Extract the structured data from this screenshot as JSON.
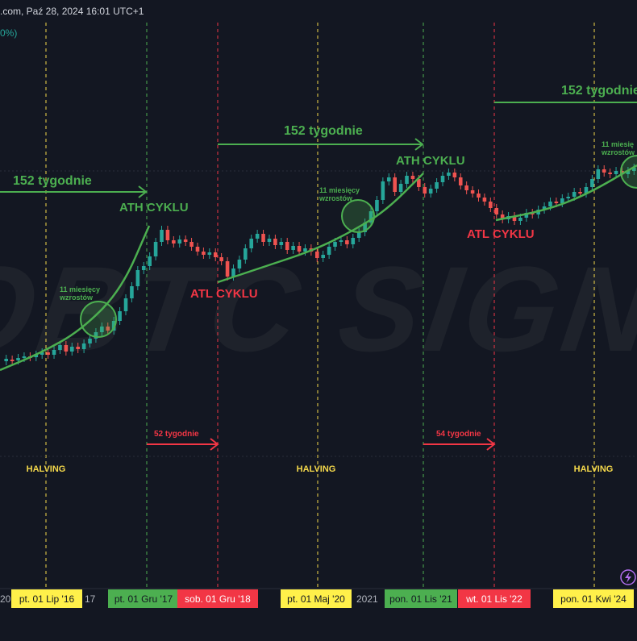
{
  "header": {
    "title_fragment": ".com, Paź 28, 2024 16:01 UTC+1",
    "pct_fragment": "0%)"
  },
  "colors": {
    "background": "#131722",
    "candle_up": "#26a69a",
    "candle_down": "#ef5350",
    "green_annotation": "#4caf50",
    "red_annotation": "#f23645",
    "halving_yellow": "#f5d94b",
    "badge_yellow": "#fff04a",
    "badge_green": "#4caf50",
    "badge_red": "#f23645"
  },
  "watermark": "OBTC SIGNA",
  "annotations": {
    "weeks_152_left": "152 tygodnie",
    "weeks_152_mid": "152 tygodnie",
    "weeks_152_right": "152 tygodnie",
    "ath_1": "ATH CYKLU",
    "ath_2": "ATH CYKLU",
    "atl_1": "ATL CYKLU",
    "atl_2": "ATL CYKLU",
    "months_growth_1": [
      "11 miesięcy",
      "wzrostów"
    ],
    "months_growth_2": [
      "11 miesięcy",
      "wzrostów"
    ],
    "months_growth_3": [
      "11 miesię",
      "wzrostów"
    ],
    "weeks_52": "52 tygodnie",
    "weeks_54": "54 tygodnie",
    "halving_label": "HALVING"
  },
  "timeline": {
    "axis_fragments": [
      "20",
      "17",
      "2021"
    ],
    "badges": [
      {
        "label": "pt. 01 Lip '16",
        "kind": "yellow"
      },
      {
        "label": "pt. 01 Gru '17",
        "kind": "green"
      },
      {
        "label": "sob. 01 Gru '18",
        "kind": "red"
      },
      {
        "label": "pt. 01 Maj '20",
        "kind": "yellow"
      },
      {
        "label": "pon. 01 Lis '21",
        "kind": "green"
      },
      {
        "label": "wt. 01 Lis '22",
        "kind": "red"
      },
      {
        "label": "pon. 01 Kwi '24",
        "kind": "yellow"
      }
    ]
  },
  "chart_data": {
    "type": "candlestick",
    "candles": [
      {
        "o": 448,
        "c": 445
      },
      {
        "o": 446,
        "c": 447
      },
      {
        "o": 447,
        "c": 444
      },
      {
        "o": 444,
        "c": 442
      },
      {
        "o": 442,
        "c": 443
      },
      {
        "o": 443,
        "c": 440
      },
      {
        "o": 440,
        "c": 437
      },
      {
        "o": 437,
        "c": 440
      },
      {
        "o": 440,
        "c": 434
      },
      {
        "o": 434,
        "c": 428
      },
      {
        "o": 428,
        "c": 436
      },
      {
        "o": 436,
        "c": 430
      },
      {
        "o": 430,
        "c": 433
      },
      {
        "o": 433,
        "c": 426
      },
      {
        "o": 426,
        "c": 420
      },
      {
        "o": 420,
        "c": 412
      },
      {
        "o": 412,
        "c": 405
      },
      {
        "o": 405,
        "c": 410
      },
      {
        "o": 410,
        "c": 398
      },
      {
        "o": 398,
        "c": 386
      },
      {
        "o": 386,
        "c": 370
      },
      {
        "o": 370,
        "c": 355
      },
      {
        "o": 355,
        "c": 335
      },
      {
        "o": 335,
        "c": 330
      },
      {
        "o": 330,
        "c": 318
      },
      {
        "o": 318,
        "c": 300
      },
      {
        "o": 300,
        "c": 285
      },
      {
        "o": 285,
        "c": 298
      },
      {
        "o": 298,
        "c": 302
      },
      {
        "o": 302,
        "c": 297
      },
      {
        "o": 297,
        "c": 300
      },
      {
        "o": 300,
        "c": 306
      },
      {
        "o": 306,
        "c": 312
      },
      {
        "o": 312,
        "c": 316
      },
      {
        "o": 316,
        "c": 313
      },
      {
        "o": 313,
        "c": 319
      },
      {
        "o": 319,
        "c": 324
      },
      {
        "o": 324,
        "c": 343
      },
      {
        "o": 343,
        "c": 333
      },
      {
        "o": 333,
        "c": 322
      },
      {
        "o": 322,
        "c": 308
      },
      {
        "o": 308,
        "c": 296
      },
      {
        "o": 296,
        "c": 290
      },
      {
        "o": 290,
        "c": 300
      },
      {
        "o": 300,
        "c": 296
      },
      {
        "o": 296,
        "c": 304
      },
      {
        "o": 304,
        "c": 300
      },
      {
        "o": 300,
        "c": 310
      },
      {
        "o": 310,
        "c": 305
      },
      {
        "o": 305,
        "c": 312
      },
      {
        "o": 312,
        "c": 308
      },
      {
        "o": 308,
        "c": 312
      },
      {
        "o": 312,
        "c": 320
      },
      {
        "o": 320,
        "c": 316
      },
      {
        "o": 316,
        "c": 306
      },
      {
        "o": 306,
        "c": 300
      },
      {
        "o": 300,
        "c": 298
      },
      {
        "o": 298,
        "c": 303
      },
      {
        "o": 303,
        "c": 295
      },
      {
        "o": 295,
        "c": 288
      },
      {
        "o": 288,
        "c": 276
      },
      {
        "o": 276,
        "c": 262
      },
      {
        "o": 262,
        "c": 248
      },
      {
        "o": 248,
        "c": 225
      },
      {
        "o": 225,
        "c": 220
      },
      {
        "o": 220,
        "c": 238
      },
      {
        "o": 238,
        "c": 228
      },
      {
        "o": 228,
        "c": 218
      },
      {
        "o": 218,
        "c": 222
      },
      {
        "o": 222,
        "c": 232
      },
      {
        "o": 232,
        "c": 240
      },
      {
        "o": 240,
        "c": 234
      },
      {
        "o": 234,
        "c": 226
      },
      {
        "o": 226,
        "c": 218
      },
      {
        "o": 218,
        "c": 214
      },
      {
        "o": 214,
        "c": 220
      },
      {
        "o": 220,
        "c": 230
      },
      {
        "o": 230,
        "c": 236
      },
      {
        "o": 236,
        "c": 240
      },
      {
        "o": 240,
        "c": 245
      },
      {
        "o": 245,
        "c": 250
      },
      {
        "o": 250,
        "c": 258
      },
      {
        "o": 258,
        "c": 266
      },
      {
        "o": 266,
        "c": 272
      },
      {
        "o": 272,
        "c": 268
      },
      {
        "o": 268,
        "c": 274
      },
      {
        "o": 274,
        "c": 270
      },
      {
        "o": 270,
        "c": 264
      },
      {
        "o": 264,
        "c": 266
      },
      {
        "o": 266,
        "c": 260
      },
      {
        "o": 260,
        "c": 256
      },
      {
        "o": 256,
        "c": 250
      },
      {
        "o": 250,
        "c": 252
      },
      {
        "o": 252,
        "c": 246
      },
      {
        "o": 246,
        "c": 244
      },
      {
        "o": 244,
        "c": 238
      },
      {
        "o": 238,
        "c": 240
      },
      {
        "o": 240,
        "c": 232
      },
      {
        "o": 232,
        "c": 222
      },
      {
        "o": 222,
        "c": 210
      },
      {
        "o": 210,
        "c": 214
      },
      {
        "o": 214,
        "c": 216
      },
      {
        "o": 216,
        "c": 212
      },
      {
        "o": 212,
        "c": 216
      },
      {
        "o": 216,
        "c": 212
      },
      {
        "o": 212,
        "c": 208
      }
    ],
    "curves": [
      {
        "name": "",
        "points": [
          [
            0,
            459
          ],
          [
            50,
            438
          ],
          [
            100,
            410
          ],
          [
            150,
            360
          ],
          [
            185,
            280
          ]
        ]
      },
      {
        "name": "",
        "points": [
          [
            270,
            350
          ],
          [
            330,
            330
          ],
          [
            390,
            310
          ],
          [
            440,
            285
          ],
          [
            480,
            260
          ],
          [
            525,
            215
          ]
        ]
      },
      {
        "name": "",
        "points": [
          [
            615,
            273
          ],
          [
            680,
            260
          ],
          [
            730,
            240
          ],
          [
            790,
            205
          ]
        ]
      }
    ]
  }
}
